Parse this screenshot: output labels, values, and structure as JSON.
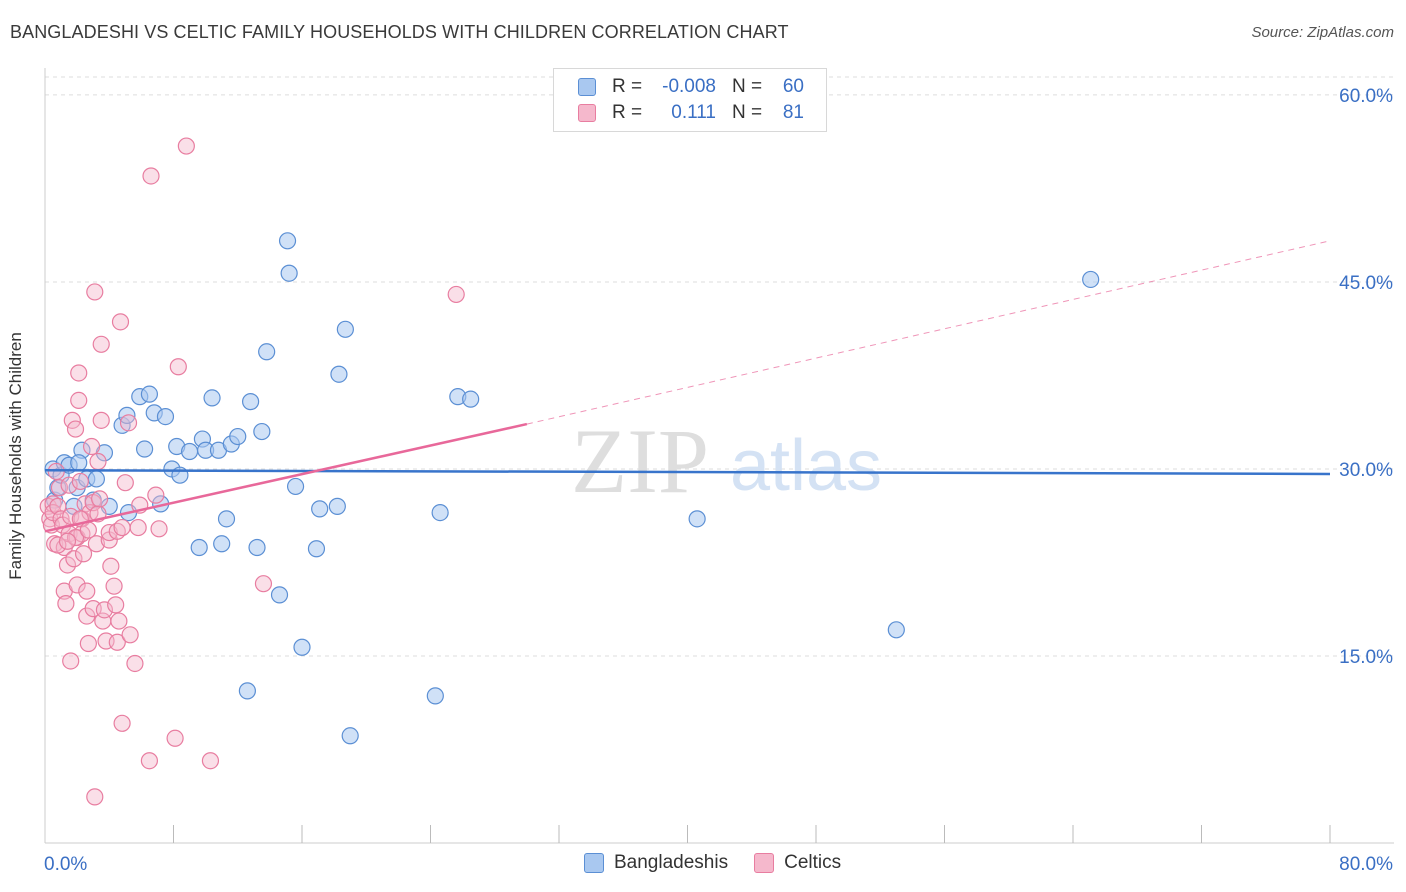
{
  "title": "BANGLADESHI VS CELTIC FAMILY HOUSEHOLDS WITH CHILDREN CORRELATION CHART",
  "source": "Source: ZipAtlas.com",
  "watermark": {
    "zip": "ZIP",
    "atlas": "atlas"
  },
  "colors": {
    "blue_fill": "#a9c8f0",
    "blue_stroke": "#5b8fd4",
    "blue_line": "#3874cb",
    "pink_fill": "#f5b8cc",
    "pink_stroke": "#e87da0",
    "pink_line": "#e8689a",
    "axis_text": "#3a6fc4",
    "grid": "#dddddd"
  },
  "legend": {
    "rows": [
      {
        "r_label": "R =",
        "r_value": "-0.008",
        "n_label": "N =",
        "n_value": "60"
      },
      {
        "r_label": "R =",
        "r_value": "0.111",
        "n_label": "N =",
        "n_value": "81"
      }
    ]
  },
  "chart_data": {
    "type": "scatter",
    "title": "BANGLADESHI VS CELTIC FAMILY HOUSEHOLDS WITH CHILDREN CORRELATION CHART",
    "xlabel": "",
    "ylabel": "Family Households with Children",
    "xlim": [
      0,
      80
    ],
    "ylim": [
      0,
      62
    ],
    "x_tick_labels": [
      "0.0%",
      "80.0%"
    ],
    "y_ticks": [
      15,
      30,
      45,
      60
    ],
    "y_tick_labels": [
      "15.0%",
      "30.0%",
      "45.0%",
      "60.0%"
    ],
    "legend_position": "bottom",
    "series": [
      {
        "name": "Bangladeshis",
        "color": "#a9c8f0",
        "trend": {
          "x": [
            0,
            80
          ],
          "y": [
            29.9,
            29.6
          ],
          "style": "solid"
        },
        "points": [
          [
            0.5,
            30.0
          ],
          [
            0.6,
            27.5
          ],
          [
            0.8,
            28.5
          ],
          [
            1.0,
            29.5
          ],
          [
            1.2,
            30.5
          ],
          [
            1.5,
            30.3
          ],
          [
            1.8,
            27.0
          ],
          [
            2.0,
            28.5
          ],
          [
            2.3,
            31.5
          ],
          [
            2.6,
            29.2
          ],
          [
            3.0,
            27.5
          ],
          [
            3.2,
            29.2
          ],
          [
            3.7,
            31.3
          ],
          [
            4.0,
            27.0
          ],
          [
            4.8,
            33.5
          ],
          [
            5.1,
            34.3
          ],
          [
            5.2,
            26.5
          ],
          [
            5.9,
            35.8
          ],
          [
            6.2,
            31.6
          ],
          [
            6.5,
            36.0
          ],
          [
            6.8,
            34.5
          ],
          [
            7.2,
            27.2
          ],
          [
            7.5,
            34.2
          ],
          [
            7.9,
            30.0
          ],
          [
            8.2,
            31.8
          ],
          [
            8.4,
            29.5
          ],
          [
            9.0,
            31.4
          ],
          [
            9.6,
            23.7
          ],
          [
            9.8,
            32.4
          ],
          [
            10.0,
            31.5
          ],
          [
            10.4,
            35.7
          ],
          [
            10.8,
            31.5
          ],
          [
            11.0,
            24.0
          ],
          [
            11.3,
            26.0
          ],
          [
            11.6,
            32.0
          ],
          [
            12.0,
            32.6
          ],
          [
            12.6,
            12.2
          ],
          [
            12.8,
            35.4
          ],
          [
            13.2,
            23.7
          ],
          [
            13.5,
            33.0
          ],
          [
            13.8,
            39.4
          ],
          [
            14.6,
            19.9
          ],
          [
            15.1,
            48.3
          ],
          [
            15.2,
            45.7
          ],
          [
            15.6,
            28.6
          ],
          [
            16.0,
            15.7
          ],
          [
            16.9,
            23.6
          ],
          [
            17.1,
            26.8
          ],
          [
            18.2,
            27.0
          ],
          [
            18.3,
            37.6
          ],
          [
            18.7,
            41.2
          ],
          [
            19.0,
            8.6
          ],
          [
            24.3,
            11.8
          ],
          [
            24.6,
            26.5
          ],
          [
            25.7,
            35.8
          ],
          [
            26.5,
            35.6
          ],
          [
            40.6,
            26.0
          ],
          [
            53.0,
            17.1
          ],
          [
            65.1,
            45.2
          ],
          [
            2.1,
            30.5
          ]
        ]
      },
      {
        "name": "Celtics",
        "color": "#f5b8cc",
        "trend": {
          "x": [
            0,
            30,
            80
          ],
          "y": [
            25.0,
            33.6,
            48.3
          ],
          "style": "solid-then-dashed"
        },
        "points": [
          [
            0.2,
            27.0
          ],
          [
            0.3,
            26.0
          ],
          [
            0.4,
            25.5
          ],
          [
            0.5,
            27.2
          ],
          [
            0.5,
            26.5
          ],
          [
            0.6,
            24.0
          ],
          [
            0.7,
            29.8
          ],
          [
            0.8,
            27.0
          ],
          [
            0.9,
            28.5
          ],
          [
            1.0,
            26.0
          ],
          [
            1.1,
            25.5
          ],
          [
            1.2,
            20.2
          ],
          [
            1.2,
            23.7
          ],
          [
            1.3,
            19.2
          ],
          [
            1.4,
            22.3
          ],
          [
            1.5,
            24.8
          ],
          [
            1.5,
            28.7
          ],
          [
            1.6,
            14.6
          ],
          [
            1.6,
            26.2
          ],
          [
            1.7,
            33.9
          ],
          [
            1.8,
            22.8
          ],
          [
            1.9,
            33.2
          ],
          [
            2.0,
            24.5
          ],
          [
            2.0,
            20.7
          ],
          [
            2.1,
            35.5
          ],
          [
            2.1,
            37.7
          ],
          [
            2.2,
            29.0
          ],
          [
            2.3,
            26.0
          ],
          [
            2.3,
            24.8
          ],
          [
            2.4,
            23.2
          ],
          [
            2.5,
            27.2
          ],
          [
            2.6,
            18.2
          ],
          [
            2.6,
            20.2
          ],
          [
            2.7,
            16.0
          ],
          [
            2.8,
            26.5
          ],
          [
            2.9,
            31.8
          ],
          [
            3.0,
            27.3
          ],
          [
            3.0,
            18.8
          ],
          [
            3.1,
            44.2
          ],
          [
            3.1,
            3.7
          ],
          [
            3.2,
            24.0
          ],
          [
            3.3,
            30.6
          ],
          [
            3.3,
            26.4
          ],
          [
            3.5,
            40.0
          ],
          [
            3.5,
            33.9
          ],
          [
            3.6,
            17.8
          ],
          [
            3.7,
            18.7
          ],
          [
            3.8,
            16.2
          ],
          [
            4.0,
            24.3
          ],
          [
            4.0,
            24.9
          ],
          [
            4.1,
            22.2
          ],
          [
            4.3,
            20.6
          ],
          [
            4.4,
            19.1
          ],
          [
            4.5,
            16.1
          ],
          [
            4.5,
            25.0
          ],
          [
            4.6,
            17.8
          ],
          [
            4.7,
            41.8
          ],
          [
            4.8,
            25.3
          ],
          [
            4.8,
            9.6
          ],
          [
            5.0,
            28.9
          ],
          [
            5.2,
            33.7
          ],
          [
            5.3,
            16.7
          ],
          [
            5.6,
            14.4
          ],
          [
            5.8,
            25.3
          ],
          [
            5.9,
            27.1
          ],
          [
            6.5,
            6.6
          ],
          [
            6.6,
            53.5
          ],
          [
            6.9,
            27.9
          ],
          [
            7.1,
            25.2
          ],
          [
            8.1,
            8.4
          ],
          [
            8.3,
            38.2
          ],
          [
            8.8,
            55.9
          ],
          [
            10.3,
            6.6
          ],
          [
            13.6,
            20.8
          ],
          [
            25.6,
            44.0
          ],
          [
            1.9,
            24.5
          ],
          [
            3.4,
            27.6
          ],
          [
            2.2,
            26.0
          ],
          [
            0.8,
            23.9
          ],
          [
            1.4,
            24.2
          ],
          [
            2.7,
            25.1
          ]
        ]
      }
    ]
  }
}
